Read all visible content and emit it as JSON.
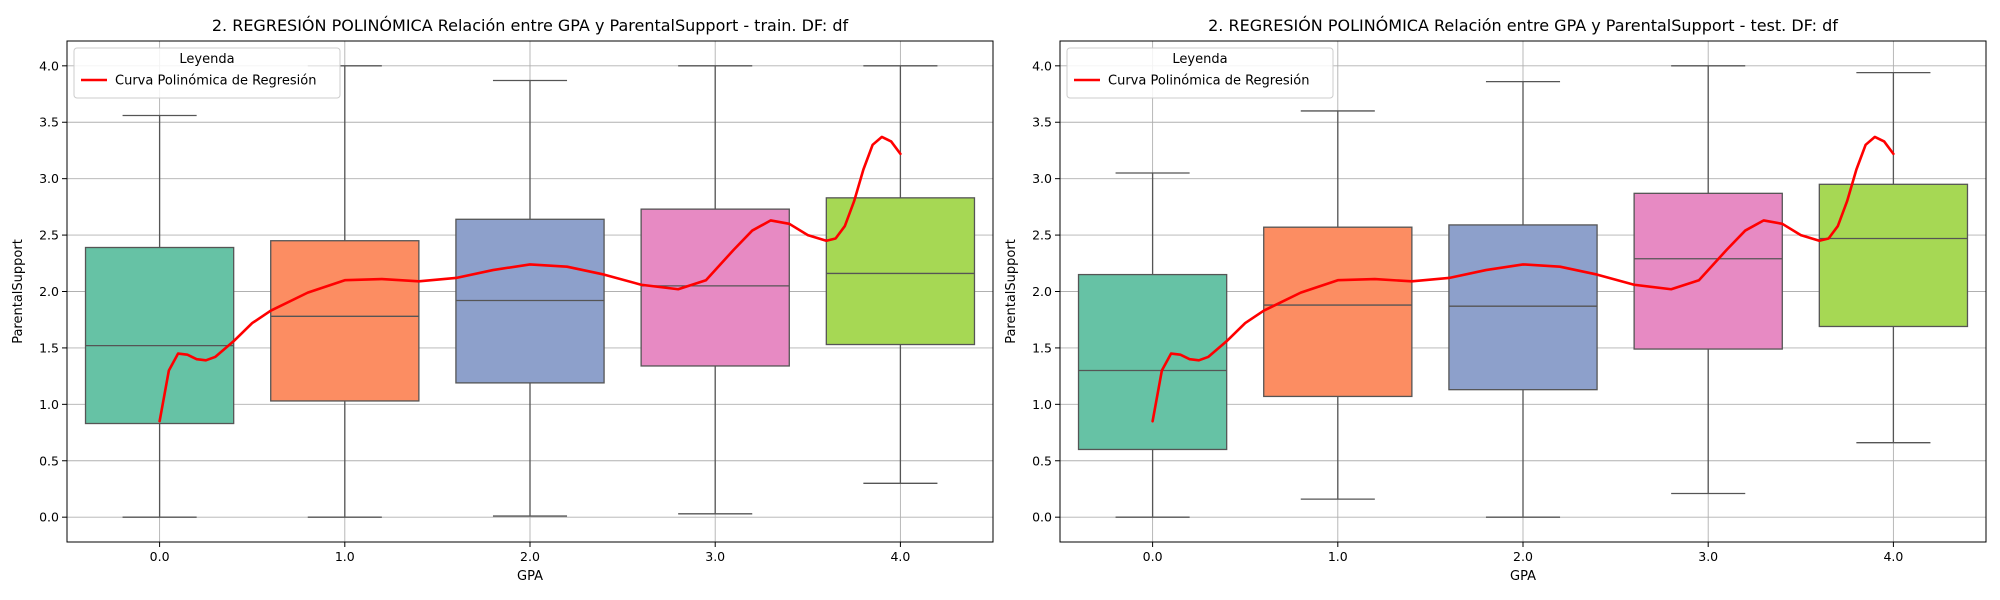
{
  "chart_data": [
    {
      "type": "box",
      "title": "2. REGRESIÓN POLINÓMICA Relación entre GPA y ParentalSupport - train. DF: df",
      "xlabel": "GPA",
      "ylabel": "ParentalSupport",
      "categories": [
        "0.0",
        "1.0",
        "2.0",
        "3.0",
        "4.0"
      ],
      "ylim": [
        -0.22,
        4.22
      ],
      "yticks": [
        "0.0",
        "0.5",
        "1.0",
        "1.5",
        "2.0",
        "2.5",
        "3.0",
        "3.5",
        "4.0"
      ],
      "grid": true,
      "legend": {
        "title": "Leyenda",
        "position": "top-left",
        "entries": [
          "Curva Polinómica de Regresión"
        ]
      },
      "colors": [
        "#66c2a5",
        "#fc8d62",
        "#8da0cb",
        "#e78ac3",
        "#a6d854"
      ],
      "line_color": "#ff0000",
      "boxes": [
        {
          "whisker_low": 0.0,
          "q1": 0.83,
          "median": 1.52,
          "q3": 2.39,
          "whisker_high": 3.56
        },
        {
          "whisker_low": 0.0,
          "q1": 1.03,
          "median": 1.78,
          "q3": 2.45,
          "whisker_high": 4.0
        },
        {
          "whisker_low": 0.01,
          "q1": 1.19,
          "median": 1.92,
          "q3": 2.64,
          "whisker_high": 3.87
        },
        {
          "whisker_low": 0.03,
          "q1": 1.34,
          "median": 2.05,
          "q3": 2.73,
          "whisker_high": 4.0
        },
        {
          "whisker_low": 0.3,
          "q1": 1.53,
          "median": 2.16,
          "q3": 2.83,
          "whisker_high": 4.0
        }
      ],
      "curve": {
        "x": [
          0.0,
          0.05,
          0.1,
          0.15,
          0.2,
          0.25,
          0.3,
          0.4,
          0.5,
          0.6,
          0.8,
          1.0,
          1.2,
          1.4,
          1.6,
          1.8,
          2.0,
          2.2,
          2.4,
          2.6,
          2.8,
          2.95,
          3.1,
          3.2,
          3.3,
          3.4,
          3.5,
          3.6,
          3.65,
          3.7,
          3.75,
          3.8,
          3.85,
          3.9,
          3.95,
          4.0
        ],
        "y": [
          0.85,
          1.3,
          1.45,
          1.44,
          1.4,
          1.39,
          1.42,
          1.56,
          1.72,
          1.83,
          1.99,
          2.1,
          2.11,
          2.09,
          2.12,
          2.19,
          2.24,
          2.22,
          2.15,
          2.06,
          2.02,
          2.1,
          2.37,
          2.54,
          2.63,
          2.6,
          2.5,
          2.45,
          2.47,
          2.58,
          2.8,
          3.08,
          3.3,
          3.37,
          3.33,
          3.22
        ]
      }
    },
    {
      "type": "box",
      "title": "2. REGRESIÓN POLINÓMICA Relación entre GPA y ParentalSupport - test. DF: df",
      "xlabel": "GPA",
      "ylabel": "ParentalSupport",
      "categories": [
        "0.0",
        "1.0",
        "2.0",
        "3.0",
        "4.0"
      ],
      "ylim": [
        -0.22,
        4.22
      ],
      "yticks": [
        "0.0",
        "0.5",
        "1.0",
        "1.5",
        "2.0",
        "2.5",
        "3.0",
        "3.5",
        "4.0"
      ],
      "grid": true,
      "legend": {
        "title": "Leyenda",
        "position": "top-left",
        "entries": [
          "Curva Polinómica de Regresión"
        ]
      },
      "colors": [
        "#66c2a5",
        "#fc8d62",
        "#8da0cb",
        "#e78ac3",
        "#a6d854"
      ],
      "line_color": "#ff0000",
      "boxes": [
        {
          "whisker_low": 0.0,
          "q1": 0.6,
          "median": 1.3,
          "q3": 2.15,
          "whisker_high": 3.05
        },
        {
          "whisker_low": 0.16,
          "q1": 1.07,
          "median": 1.88,
          "q3": 2.57,
          "whisker_high": 3.6
        },
        {
          "whisker_low": 0.0,
          "q1": 1.13,
          "median": 1.87,
          "q3": 2.59,
          "whisker_high": 3.86
        },
        {
          "whisker_low": 0.21,
          "q1": 1.49,
          "median": 2.29,
          "q3": 2.87,
          "whisker_high": 4.0
        },
        {
          "whisker_low": 0.66,
          "q1": 1.69,
          "median": 2.47,
          "q3": 2.95,
          "whisker_high": 3.94
        }
      ],
      "curve": {
        "x": [
          0.0,
          0.05,
          0.1,
          0.15,
          0.2,
          0.25,
          0.3,
          0.4,
          0.5,
          0.6,
          0.8,
          1.0,
          1.2,
          1.4,
          1.6,
          1.8,
          2.0,
          2.2,
          2.4,
          2.6,
          2.8,
          2.95,
          3.1,
          3.2,
          3.3,
          3.4,
          3.5,
          3.6,
          3.65,
          3.7,
          3.75,
          3.8,
          3.85,
          3.9,
          3.95,
          4.0
        ],
        "y": [
          0.85,
          1.3,
          1.45,
          1.44,
          1.4,
          1.39,
          1.42,
          1.56,
          1.72,
          1.83,
          1.99,
          2.1,
          2.11,
          2.09,
          2.12,
          2.19,
          2.24,
          2.22,
          2.15,
          2.06,
          2.02,
          2.1,
          2.37,
          2.54,
          2.63,
          2.6,
          2.5,
          2.45,
          2.47,
          2.58,
          2.8,
          3.08,
          3.3,
          3.37,
          3.33,
          3.22
        ]
      }
    }
  ]
}
